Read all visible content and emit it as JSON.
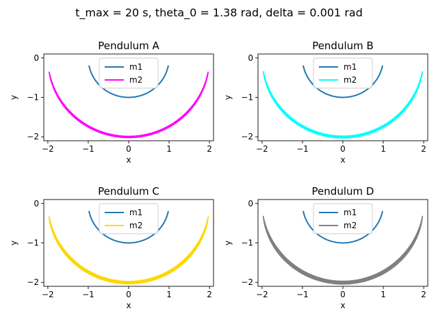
{
  "suptitle": "t_max = 20 s, theta_0 = 1.38 rad, delta = 0.001 rad",
  "chart_data": [
    {
      "type": "line",
      "title": "Pendulum A",
      "xlabel": "x",
      "ylabel": "y",
      "xlim": [
        -2.1,
        2.1
      ],
      "ylim": [
        -2.1,
        0.1
      ],
      "xticks": [
        -2,
        -1,
        0,
        1,
        2
      ],
      "yticks": [
        -2,
        -1,
        0
      ],
      "legend_position": "upper center",
      "series": [
        {
          "name": "m1",
          "color": "#1f77b4",
          "kind": "m1",
          "amplitude": 1.38
        },
        {
          "name": "m2",
          "color": "#ff00ff",
          "kind": "m2",
          "amplitude": 1.38
        }
      ]
    },
    {
      "type": "line",
      "title": "Pendulum B",
      "xlabel": "x",
      "ylabel": "y",
      "xlim": [
        -2.1,
        2.1
      ],
      "ylim": [
        -2.1,
        0.1
      ],
      "xticks": [
        -2,
        -1,
        0,
        1,
        2
      ],
      "yticks": [
        -2,
        -1,
        0
      ],
      "legend_position": "upper center",
      "series": [
        {
          "name": "m1",
          "color": "#1f77b4",
          "kind": "m1",
          "amplitude": 1.38
        },
        {
          "name": "m2",
          "color": "#00ffff",
          "kind": "m2",
          "amplitude": 1.38
        }
      ]
    },
    {
      "type": "line",
      "title": "Pendulum C",
      "xlabel": "x",
      "ylabel": "y",
      "xlim": [
        -2.1,
        2.1
      ],
      "ylim": [
        -2.1,
        0.1
      ],
      "xticks": [
        -2,
        -1,
        0,
        1,
        2
      ],
      "yticks": [
        -2,
        -1,
        0
      ],
      "legend_position": "upper center",
      "series": [
        {
          "name": "m1",
          "color": "#1f77b4",
          "kind": "m1",
          "amplitude": 1.38
        },
        {
          "name": "m2",
          "color": "#ffd700",
          "kind": "m2",
          "amplitude": 1.38
        }
      ]
    },
    {
      "type": "line",
      "title": "Pendulum D",
      "xlabel": "x",
      "ylabel": "y",
      "xlim": [
        -2.1,
        2.1
      ],
      "ylim": [
        -2.1,
        0.1
      ],
      "xticks": [
        -2,
        -1,
        0,
        1,
        2
      ],
      "yticks": [
        -2,
        -1,
        0
      ],
      "legend_position": "upper center",
      "series": [
        {
          "name": "m1",
          "color": "#1f77b4",
          "kind": "m1",
          "amplitude": 1.38
        },
        {
          "name": "m2",
          "color": "#808080",
          "kind": "m2",
          "amplitude": 1.38
        }
      ]
    }
  ]
}
